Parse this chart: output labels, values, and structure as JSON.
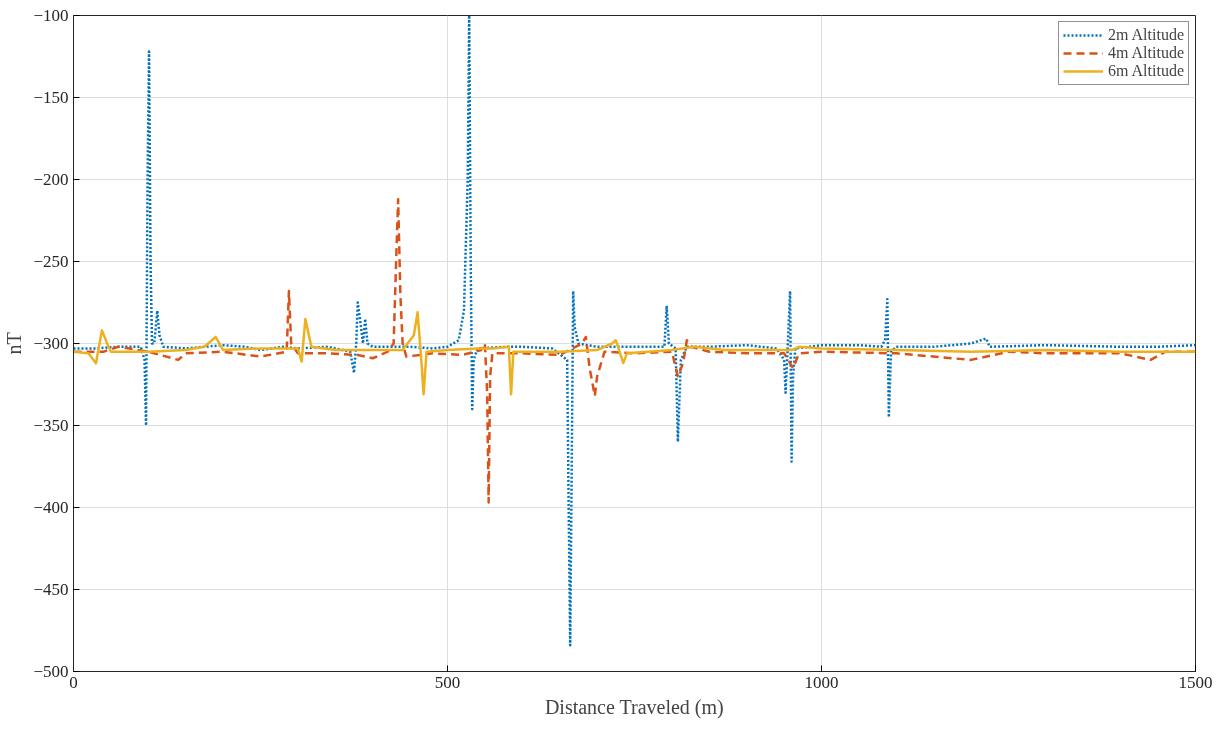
{
  "chart_data": {
    "type": "line",
    "xlabel": "Distance Traveled (m)",
    "ylabel": "nT",
    "xlim": [
      0,
      1500
    ],
    "xticks": [
      0,
      500,
      1000,
      1500
    ],
    "ylim": [
      -500,
      -100
    ],
    "yticks": [
      -500,
      -450,
      -400,
      -350,
      -300,
      -250,
      -200,
      -150,
      -100
    ],
    "grid": true,
    "legend": "top right",
    "series": [
      {
        "name": "2m Altitude",
        "color": "#0072bd",
        "line_style": "dotted",
        "x": [
          0,
          30,
          60,
          90,
          95,
          97,
          99,
          101,
          103,
          105,
          108,
          112,
          115,
          120,
          150,
          200,
          230,
          250,
          280,
          300,
          340,
          370,
          375,
          378,
          380,
          383,
          387,
          390,
          393,
          400,
          450,
          480,
          500,
          515,
          522,
          527,
          529,
          531,
          533,
          535,
          540,
          580,
          600,
          640,
          660,
          662,
          664,
          666,
          668,
          670,
          675,
          700,
          750,
          790,
          793,
          796,
          805,
          808,
          812,
          820,
          850,
          900,
          940,
          950,
          952,
          955,
          958,
          960,
          962,
          965,
          1000,
          1050,
          1080,
          1085,
          1088,
          1090,
          1093,
          1100,
          1150,
          1200,
          1220,
          1225,
          1300,
          1400,
          1450,
          1500
        ],
        "values": [
          -303,
          -303,
          -302,
          -302,
          -310,
          -350,
          -200,
          -122,
          -250,
          -300,
          -300,
          -280,
          -295,
          -302,
          -303,
          -301,
          -302,
          -304,
          -302,
          -303,
          -302,
          -305,
          -318,
          -300,
          -275,
          -285,
          -300,
          -285,
          -300,
          -302,
          -302,
          -303,
          -302,
          -298,
          -280,
          -200,
          -100,
          -250,
          -340,
          -310,
          -303,
          -302,
          -302,
          -303,
          -310,
          -400,
          -484,
          -380,
          -268,
          -290,
          -300,
          -302,
          -302,
          -302,
          -277,
          -300,
          -303,
          -360,
          -310,
          -302,
          -302,
          -301,
          -303,
          -310,
          -330,
          -300,
          -268,
          -372,
          -320,
          -303,
          -301,
          -301,
          -302,
          -298,
          -273,
          -345,
          -305,
          -302,
          -302,
          -300,
          -297,
          -302,
          -301,
          -302,
          -302,
          -301
        ]
      },
      {
        "name": "4m Altitude",
        "color": "#d95319",
        "line_style": "dashed",
        "x": [
          0,
          40,
          60,
          100,
          140,
          150,
          200,
          250,
          285,
          288,
          291,
          300,
          340,
          380,
          400,
          420,
          428,
          432,
          434,
          437,
          440,
          445,
          480,
          520,
          545,
          550,
          553,
          555,
          557,
          560,
          600,
          650,
          680,
          685,
          690,
          697,
          700,
          710,
          750,
          800,
          808,
          815,
          820,
          825,
          850,
          900,
          950,
          958,
          962,
          970,
          1000,
          1100,
          1200,
          1250,
          1300,
          1400,
          1440,
          1460,
          1500
        ],
        "values": [
          -305,
          -305,
          -302,
          -305,
          -310,
          -306,
          -305,
          -308,
          -305,
          -268,
          -300,
          -306,
          -306,
          -307,
          -309,
          -305,
          -300,
          -240,
          -212,
          -270,
          -300,
          -308,
          -306,
          -307,
          -304,
          -300,
          -330,
          -397,
          -320,
          -306,
          -306,
          -307,
          -300,
          -296,
          -315,
          -332,
          -320,
          -305,
          -306,
          -305,
          -320,
          -312,
          -298,
          -302,
          -305,
          -306,
          -306,
          -312,
          -315,
          -306,
          -305,
          -306,
          -310,
          -305,
          -306,
          -306,
          -310,
          -305,
          -305
        ]
      },
      {
        "name": "6m Altitude",
        "color": "#edb120",
        "line_style": "solid",
        "x": [
          0,
          20,
          30,
          38,
          45,
          50,
          100,
          150,
          175,
          190,
          200,
          250,
          300,
          305,
          310,
          318,
          350,
          400,
          440,
          455,
          460,
          465,
          468,
          472,
          500,
          540,
          560,
          582,
          585,
          588,
          620,
          650,
          700,
          720,
          725,
          735,
          740,
          800,
          830,
          870,
          900,
          960,
          970,
          1000,
          1100,
          1200,
          1300,
          1400,
          1500
        ],
        "values": [
          -305,
          -306,
          -312,
          -292,
          -300,
          -305,
          -305,
          -304,
          -302,
          -296,
          -304,
          -303,
          -303,
          -311,
          -285,
          -302,
          -304,
          -304,
          -304,
          -295,
          -281,
          -310,
          -331,
          -305,
          -304,
          -303,
          -303,
          -302,
          -331,
          -305,
          -305,
          -305,
          -304,
          -300,
          -298,
          -312,
          -306,
          -304,
          -302,
          -304,
          -304,
          -304,
          -302,
          -303,
          -304,
          -305,
          -304,
          -305,
          -305
        ]
      }
    ]
  }
}
